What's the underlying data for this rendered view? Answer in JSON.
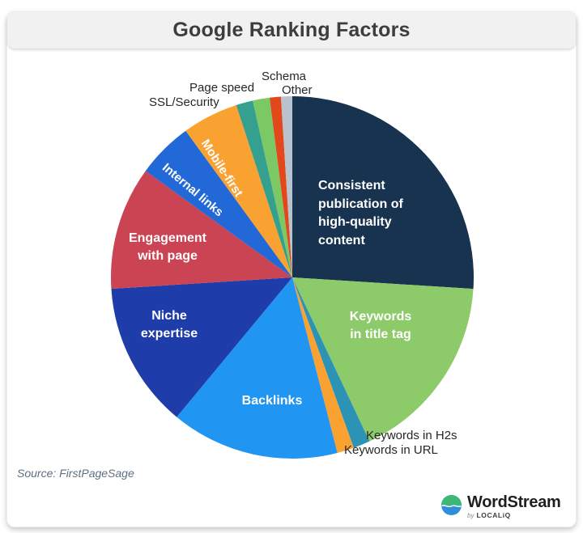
{
  "header": {
    "title": "Google Ranking Factors"
  },
  "source": {
    "text": "Source: FirstPageSage"
  },
  "logo": {
    "name": "WordStream",
    "byline_prefix": "by",
    "byline_brand": "LOCALiQ"
  },
  "chart_data": {
    "type": "pie",
    "title": "Google Ranking Factors",
    "unit": "percent",
    "start_angle_deg": 0,
    "direction": "clockwise",
    "legend_position": "none",
    "slices": [
      {
        "label": "Consistent publication of high-quality content",
        "value": 26,
        "color": "#17334f",
        "label_position": "inside"
      },
      {
        "label": "Keywords in title tag",
        "value": 17,
        "color": "#8dca69",
        "label_position": "inside"
      },
      {
        "label": "Keywords in H2s",
        "value": 1.5,
        "color": "#2d93b5",
        "label_position": "outside"
      },
      {
        "label": "Keywords in URL",
        "value": 1.5,
        "color": "#f9a232",
        "label_position": "outside"
      },
      {
        "label": "Backlinks",
        "value": 15,
        "color": "#2095f2",
        "label_position": "inside"
      },
      {
        "label": "Niche expertise",
        "value": 13,
        "color": "#1e3caa",
        "label_position": "inside"
      },
      {
        "label": "Engagement with page",
        "value": 11,
        "color": "#cb4453",
        "label_position": "inside"
      },
      {
        "label": "Internal links",
        "value": 5,
        "color": "#2268d6",
        "label_position": "inside-rotated"
      },
      {
        "label": "Mobile-first",
        "value": 5,
        "color": "#f9a232",
        "label_position": "inside-rotated"
      },
      {
        "label": "SSL/Security",
        "value": 1.5,
        "color": "#35a08e",
        "label_position": "outside"
      },
      {
        "label": "Page speed",
        "value": 1.5,
        "color": "#7cc865",
        "label_position": "outside"
      },
      {
        "label": "Schema",
        "value": 1,
        "color": "#e1491d",
        "label_position": "outside"
      },
      {
        "label": "Other",
        "value": 1,
        "color": "#b9c3cd",
        "label_position": "outside"
      }
    ]
  }
}
